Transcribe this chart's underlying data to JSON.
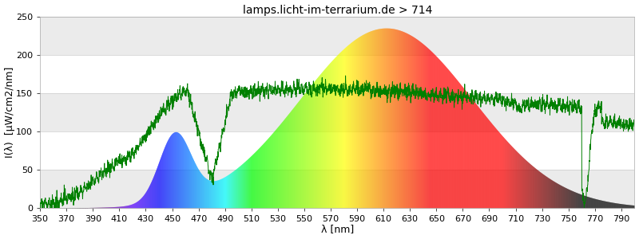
{
  "title": "lamps.licht-im-terrarium.de > 714",
  "xlabel": "λ [nm]",
  "ylabel": "I(λ)  [μW/cm2/nm]",
  "xlim": [
    350,
    800
  ],
  "ylim": [
    0,
    250
  ],
  "yticks": [
    0,
    50,
    100,
    150,
    200,
    250
  ],
  "xticks": [
    350,
    370,
    390,
    410,
    430,
    450,
    470,
    490,
    510,
    530,
    550,
    570,
    590,
    610,
    630,
    650,
    670,
    690,
    710,
    730,
    750,
    770,
    790
  ],
  "background_color": "#ffffff",
  "title_fontsize": 10,
  "axis_fontsize": 9,
  "tick_fontsize": 8,
  "band_colors": [
    "#f0f0f0",
    "#ffffff"
  ],
  "green_color": "#008000"
}
